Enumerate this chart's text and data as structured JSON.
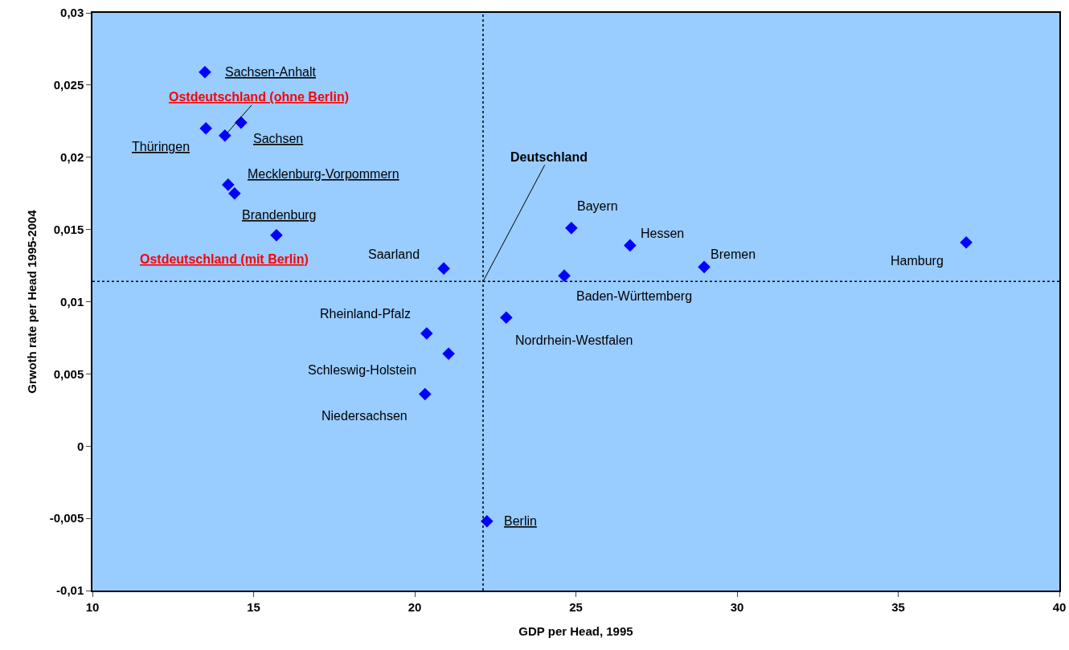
{
  "chart_data": {
    "type": "scatter",
    "xlabel": "GDP per Head, 1995",
    "ylabel": "Grwoth rate per Head 1995-2004",
    "x": [
      13.49,
      13.52,
      14.11,
      14.61,
      14.21,
      14.41,
      15.71,
      20.9,
      24.86,
      26.68,
      28.98,
      37.11,
      24.64,
      22.84,
      20.37,
      21.05,
      20.32,
      22.24
    ],
    "series": [
      {
        "color": "#0000ff",
        "values": [
          0.0259,
          0.022,
          0.0215,
          0.0224,
          0.0181,
          0.0175,
          0.0146,
          0.0123,
          0.0151,
          0.0139,
          0.0124,
          0.0141,
          0.0118,
          0.0089,
          0.0078,
          0.0064,
          0.0036,
          -0.0052
        ]
      }
    ],
    "annotations": [
      {
        "text": "Sachsen-Anhalt",
        "x": 13.49,
        "y": 0.0259
      },
      {
        "text": "Thüringen",
        "x": 13.52,
        "y": 0.022
      },
      {
        "text": "Ostdeutschland (ohne Berlin)",
        "x": 14.11,
        "y": 0.0215
      },
      {
        "text": "Sachsen",
        "x": 14.61,
        "y": 0.0224
      },
      {
        "text": "Mecklenburg-Vorpommern",
        "x": 14.21,
        "y": 0.0181
      },
      {
        "text": "Brandenburg",
        "x": 14.41,
        "y": 0.0175
      },
      {
        "text": "Ostdeutschland (mit Berlin)",
        "x": 15.71,
        "y": 0.0146
      },
      {
        "text": "Saarland",
        "x": 20.9,
        "y": 0.0123
      },
      {
        "text": "Bayern",
        "x": 24.86,
        "y": 0.0151
      },
      {
        "text": "Hessen",
        "x": 26.68,
        "y": 0.0139
      },
      {
        "text": "Bremen",
        "x": 28.98,
        "y": 0.0124
      },
      {
        "text": "Hamburg",
        "x": 37.11,
        "y": 0.0141
      },
      {
        "text": "Baden-Württemberg",
        "x": 24.64,
        "y": 0.0118
      },
      {
        "text": "Nordrhein-Westfalen",
        "x": 22.84,
        "y": 0.0089
      },
      {
        "text": "Rheinland-Pfalz",
        "x": 20.37,
        "y": 0.0078
      },
      {
        "text": "Schleswig-Holstein",
        "x": 21.05,
        "y": 0.0064
      },
      {
        "text": "Niedersachsen",
        "x": 20.32,
        "y": 0.0036
      },
      {
        "text": "Berlin",
        "x": 22.24,
        "y": -0.0052
      },
      {
        "text": "Deutschland",
        "x": 22.12,
        "y": 0.0114
      }
    ],
    "ref_lines": [
      {
        "axis": "x",
        "value": 22.12,
        "line_style": "dotted",
        "color": "#000000"
      },
      {
        "axis": "y",
        "value": 0.0114,
        "line_style": "dotted",
        "color": "#000000"
      }
    ],
    "xlim": [
      10,
      40
    ],
    "xticks": [
      10,
      15,
      20,
      25,
      30,
      35,
      40
    ],
    "ylim": [
      -0.01,
      0.03
    ],
    "yticks": [
      {
        "value": -0.01,
        "label": "-0,01"
      },
      {
        "value": -0.005,
        "label": "-0,005"
      },
      0,
      {
        "value": 0.005,
        "label": "0,005"
      },
      {
        "value": 0.01,
        "label": "0,01"
      },
      {
        "value": 0.015,
        "label": "0,015"
      },
      {
        "value": 0.02,
        "label": "0,02"
      },
      {
        "value": 0.025,
        "label": "0,025"
      },
      {
        "value": 0.03,
        "label": "0,03"
      }
    ],
    "grid": false,
    "marker": "diamond"
  }
}
